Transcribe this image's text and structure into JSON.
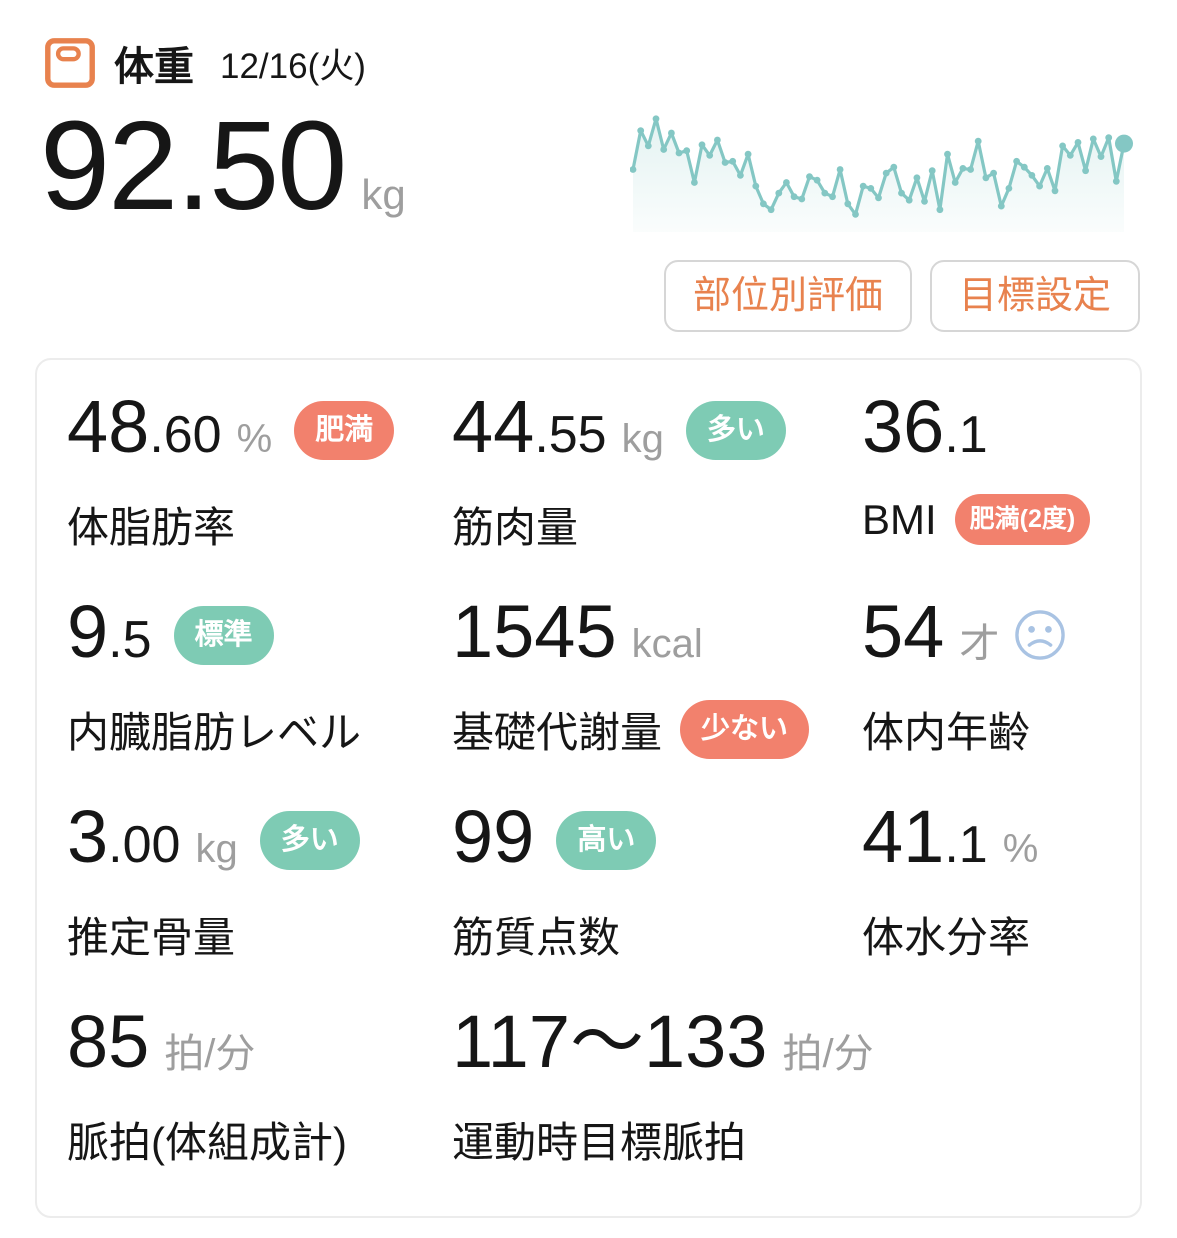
{
  "colors": {
    "accent_orange": "#e8824e",
    "badge_bad": "#f2816d",
    "badge_good": "#7ecbb4",
    "chart_teal": "#84c7c4",
    "unit_gray": "#9e9e9e",
    "face_blue": "#a9c3e3"
  },
  "header": {
    "title": "体重",
    "date": "12/16(火)"
  },
  "weight": {
    "value": "92.50",
    "unit": "kg"
  },
  "chart_data": {
    "type": "line",
    "name": "weight-trend-sparkline",
    "y_scale": "relative-0-100",
    "color": "#84c7c4",
    "fill": "teal-gradient",
    "last_point_emphasized": true,
    "values": [
      47,
      80,
      67,
      90,
      64,
      78,
      61,
      63,
      36,
      68,
      59,
      72,
      53,
      54,
      42,
      60,
      33,
      18,
      13,
      27,
      36,
      24,
      22,
      41,
      38,
      27,
      24,
      47,
      18,
      9,
      33,
      31,
      23,
      44,
      49,
      27,
      21,
      40,
      20,
      46,
      13,
      60,
      36,
      48,
      47,
      71,
      40,
      44,
      16,
      31,
      54,
      49,
      42,
      33,
      48,
      29,
      67,
      59,
      70,
      46,
      73,
      58,
      74,
      37,
      69
    ]
  },
  "buttons": [
    {
      "label": "部位別評価"
    },
    {
      "label": "目標設定"
    }
  ],
  "metrics": [
    {
      "name": "body-fat-rate",
      "value_int": "48",
      "value_dec": ".60",
      "unit": "%",
      "badge": {
        "text": "肥満",
        "tone": "bad",
        "position": "value"
      },
      "label": "体脂肪率"
    },
    {
      "name": "muscle-mass",
      "value_int": "44",
      "value_dec": ".55",
      "unit": "kg",
      "badge": {
        "text": "多い",
        "tone": "good",
        "position": "value"
      },
      "label": "筋肉量"
    },
    {
      "name": "bmi",
      "value_int": "36",
      "value_dec": ".1",
      "badge": {
        "text": "肥満(2度)",
        "tone": "bad",
        "position": "label"
      },
      "label": "BMI"
    },
    {
      "name": "visceral-fat-level",
      "value_int": "9",
      "value_dec": ".5",
      "badge": {
        "text": "標準",
        "tone": "good",
        "position": "value"
      },
      "label": "内臓脂肪レベル"
    },
    {
      "name": "basal-metabolic-rate",
      "value_int": "1545",
      "unit": "kcal",
      "badge": {
        "text": "少ない",
        "tone": "bad",
        "position": "label"
      },
      "label": "基礎代謝量"
    },
    {
      "name": "body-age",
      "value_int": "54",
      "unit": "才",
      "icon": "sad-face",
      "label": "体内年齢"
    },
    {
      "name": "estimated-bone-mass",
      "value_int": "3",
      "value_dec": ".00",
      "unit": "kg",
      "badge": {
        "text": "多い",
        "tone": "good",
        "position": "value"
      },
      "label": "推定骨量"
    },
    {
      "name": "muscle-quality-score",
      "value_int": "99",
      "badge": {
        "text": "高い",
        "tone": "good",
        "position": "value"
      },
      "label": "筋質点数"
    },
    {
      "name": "body-water-rate",
      "value_int": "41",
      "value_dec": ".1",
      "unit": "%",
      "label": "体水分率"
    },
    {
      "name": "pulse-body-composition",
      "value_int": "85",
      "unit": "拍/分",
      "label": "脈拍(体組成計)"
    },
    {
      "name": "exercise-target-pulse",
      "value_int": "117〜133",
      "unit": "拍/分",
      "label": "運動時目標脈拍",
      "span": 2
    }
  ]
}
